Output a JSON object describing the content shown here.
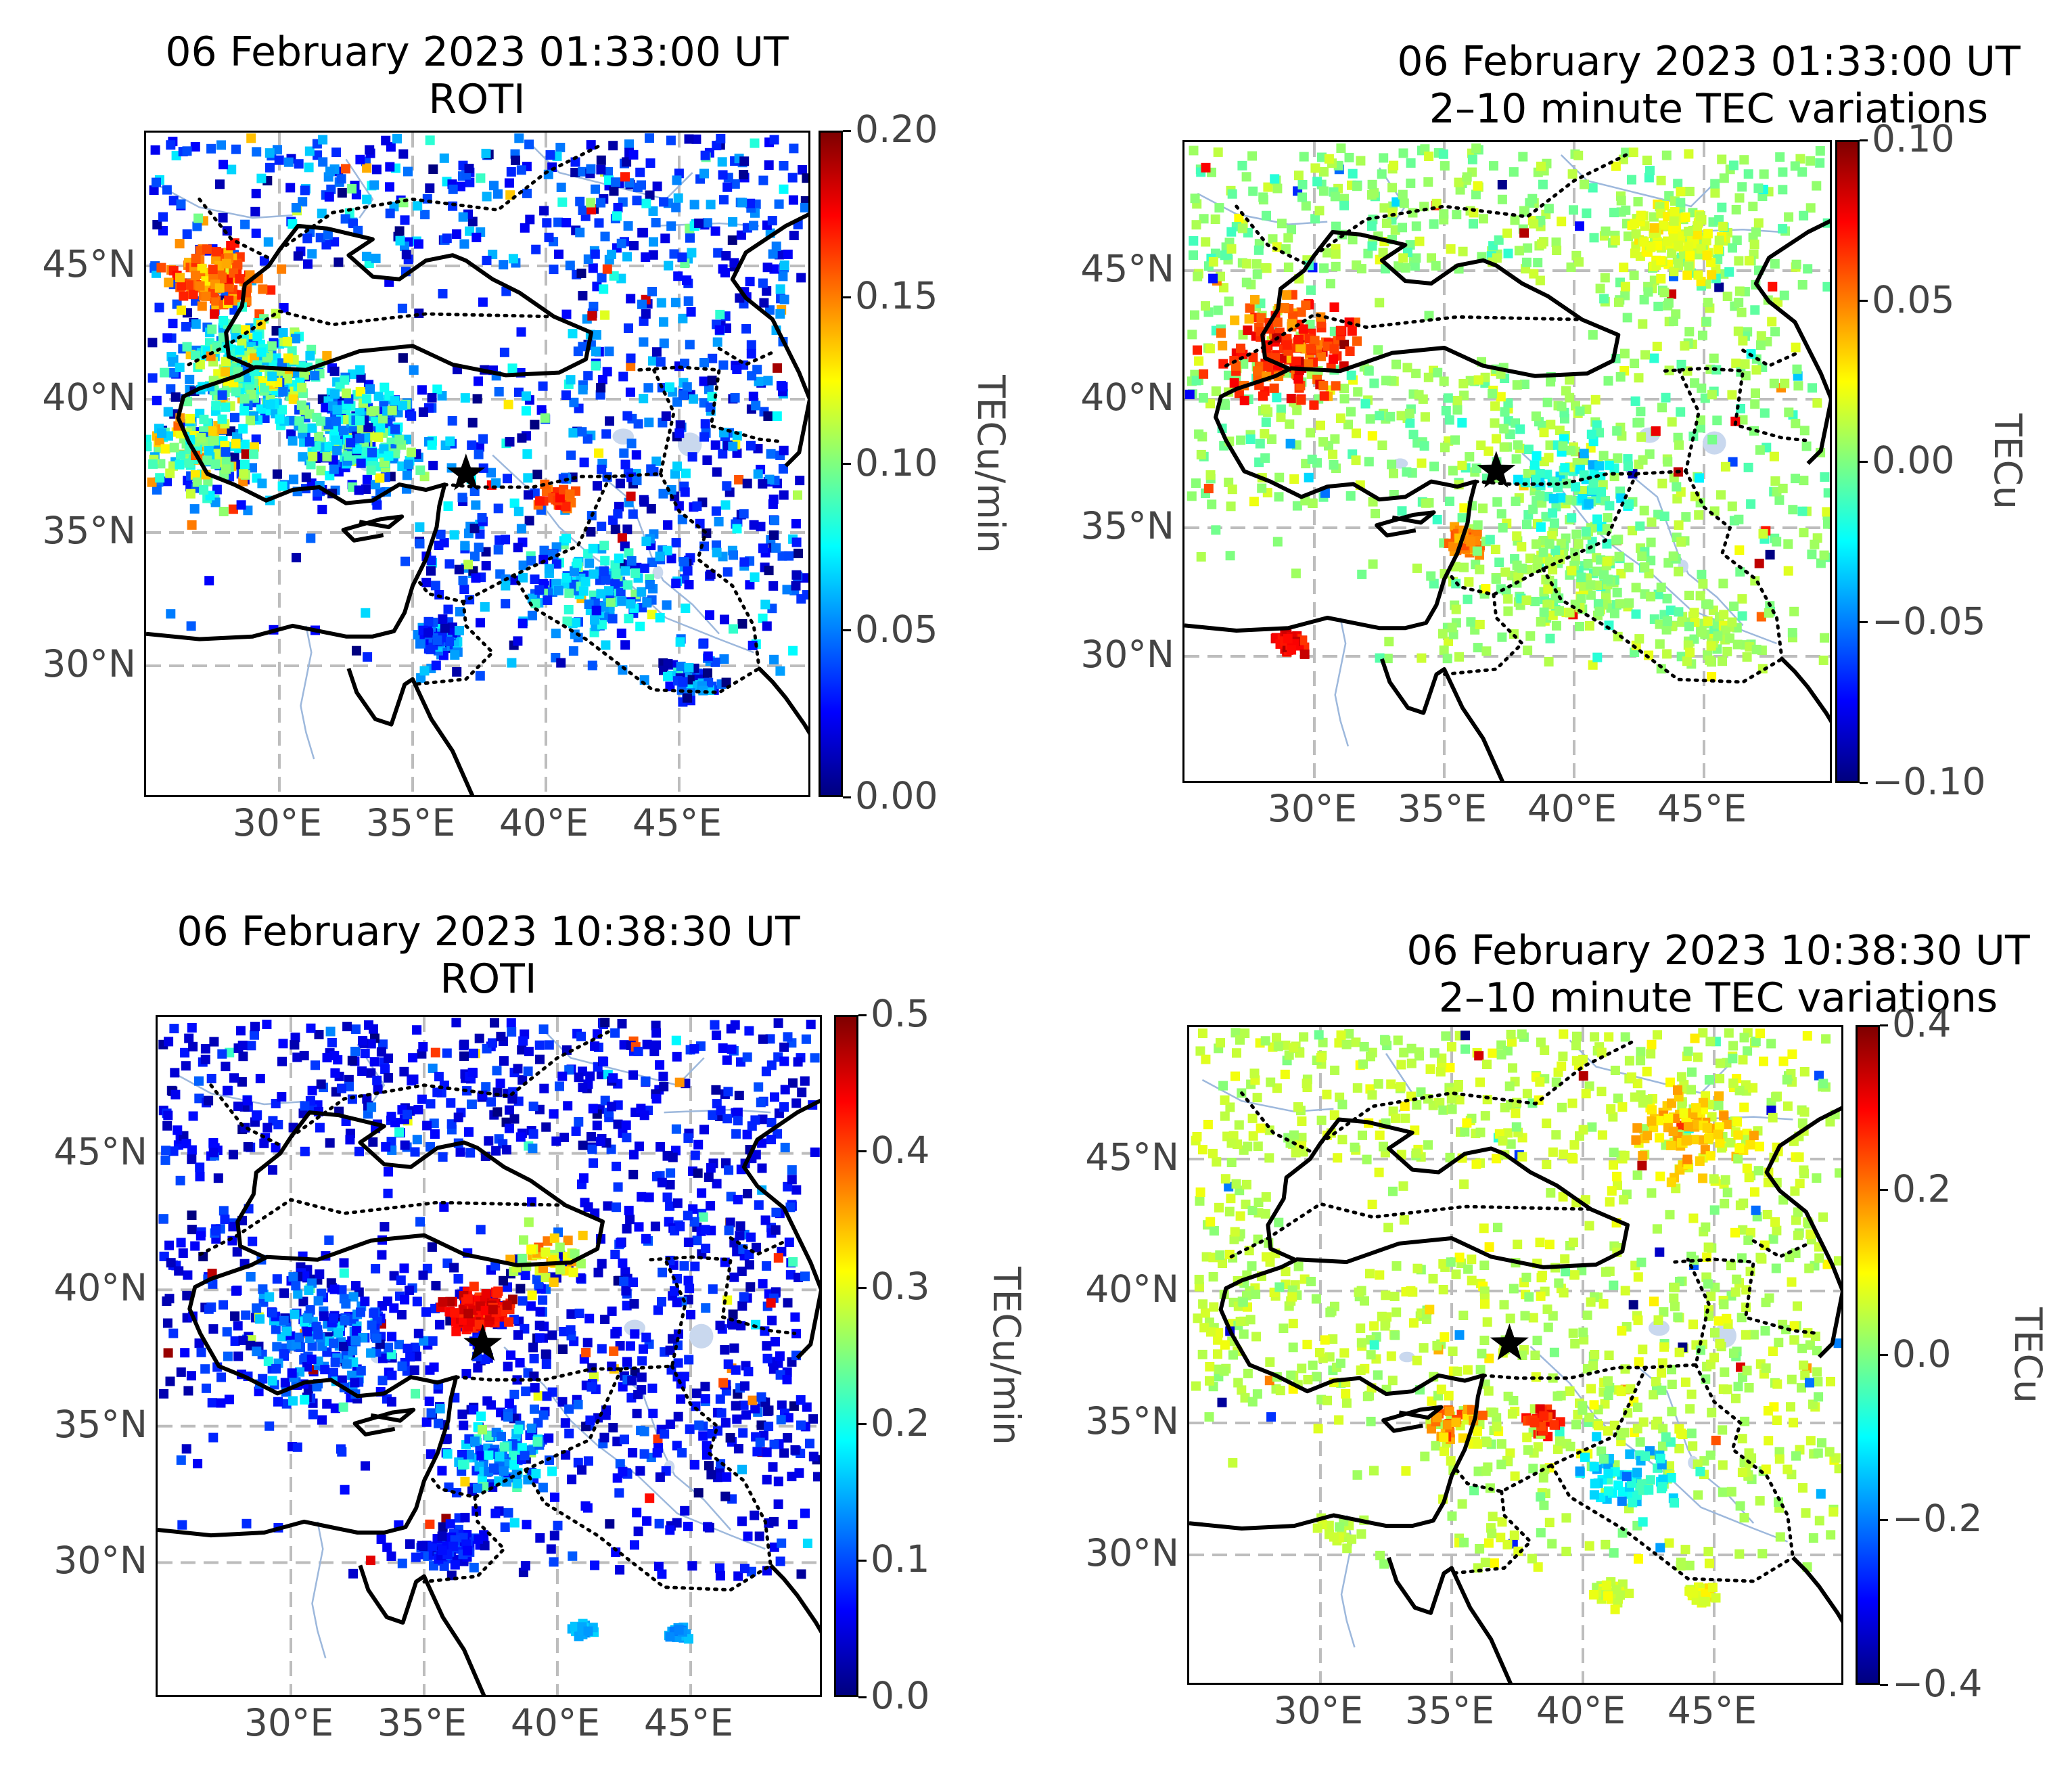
{
  "figure": {
    "colormap": [
      "#00007f",
      "#0000ff",
      "#007fff",
      "#00ffff",
      "#7fff7f",
      "#ffff00",
      "#ff7f00",
      "#ff0000",
      "#7f0000"
    ],
    "epicenter_marker": "black-star",
    "lon_ticks": [
      "30°E",
      "35°E",
      "40°E",
      "45°E"
    ],
    "lat_ticks": [
      "30°N",
      "35°N",
      "40°N",
      "45°N"
    ]
  },
  "chart_data": [
    {
      "type": "scatter",
      "panel": "top-left",
      "title_line1": "06 February 2023 01:33:00 UT",
      "title_line2": "ROTI",
      "xlabel": "",
      "ylabel": "",
      "x_range": [
        25,
        50
      ],
      "y_range": [
        25,
        50
      ],
      "x_ticks": [
        30,
        35,
        40,
        45
      ],
      "y_ticks": [
        30,
        35,
        40,
        45
      ],
      "x_tick_labels": [
        "30°E",
        "35°E",
        "40°E",
        "45°E"
      ],
      "y_tick_labels": [
        "30°N",
        "35°N",
        "40°N",
        "45°N"
      ],
      "epicenter": [
        37.0,
        37.2
      ],
      "colorbar": {
        "label": "TECu/min",
        "min": 0.0,
        "max": 0.2,
        "ticks": [
          0.0,
          0.05,
          0.1,
          0.15,
          0.2
        ],
        "tick_labels": [
          "0.00",
          "0.05",
          "0.10",
          "0.15",
          "0.20"
        ]
      }
    },
    {
      "type": "scatter",
      "panel": "top-right",
      "title_line1": "06 February 2023 01:33:00 UT",
      "title_line2": "2–10 minute TEC variations",
      "xlabel": "",
      "ylabel": "",
      "x_range": [
        25,
        50
      ],
      "y_range": [
        25,
        50
      ],
      "x_ticks": [
        30,
        35,
        40,
        45
      ],
      "y_ticks": [
        30,
        35,
        40,
        45
      ],
      "x_tick_labels": [
        "30°E",
        "35°E",
        "40°E",
        "45°E"
      ],
      "y_tick_labels": [
        "30°N",
        "35°N",
        "40°N",
        "45°N"
      ],
      "epicenter": [
        37.0,
        37.2
      ],
      "colorbar": {
        "label": "TECu",
        "min": -0.1,
        "max": 0.1,
        "ticks": [
          -0.1,
          -0.05,
          0.0,
          0.05,
          0.1
        ],
        "tick_labels": [
          "−0.10",
          "−0.05",
          "0.00",
          "0.05",
          "0.10"
        ]
      }
    },
    {
      "type": "scatter",
      "panel": "bottom-left",
      "title_line1": "06 February 2023 10:38:30 UT",
      "title_line2": "ROTI",
      "xlabel": "",
      "ylabel": "",
      "x_range": [
        25,
        50
      ],
      "y_range": [
        25,
        50
      ],
      "x_ticks": [
        30,
        35,
        40,
        45
      ],
      "y_ticks": [
        30,
        35,
        40,
        45
      ],
      "x_tick_labels": [
        "30°E",
        "35°E",
        "40°E",
        "45°E"
      ],
      "y_tick_labels": [
        "30°N",
        "35°N",
        "40°N",
        "45°N"
      ],
      "epicenter": [
        37.2,
        38.0
      ],
      "colorbar": {
        "label": "TECu/min",
        "min": 0.0,
        "max": 0.5,
        "ticks": [
          0.0,
          0.1,
          0.2,
          0.3,
          0.4,
          0.5
        ],
        "tick_labels": [
          "0.0",
          "0.1",
          "0.2",
          "0.3",
          "0.4",
          "0.5"
        ]
      }
    },
    {
      "type": "scatter",
      "panel": "bottom-right",
      "title_line1": "06 February 2023 10:38:30 UT",
      "title_line2": "2–10 minute TEC variations",
      "xlabel": "",
      "ylabel": "",
      "x_range": [
        25,
        50
      ],
      "y_range": [
        25,
        50
      ],
      "x_ticks": [
        30,
        35,
        40,
        45
      ],
      "y_ticks": [
        30,
        35,
        40,
        45
      ],
      "x_tick_labels": [
        "30°E",
        "35°E",
        "40°E",
        "45°E"
      ],
      "y_tick_labels": [
        "30°N",
        "35°N",
        "40°N",
        "45°N"
      ],
      "epicenter": [
        37.2,
        38.0
      ],
      "colorbar": {
        "label": "TECu",
        "min": -0.4,
        "max": 0.4,
        "ticks": [
          -0.4,
          -0.2,
          0.0,
          0.2,
          0.4
        ],
        "tick_labels": [
          "−0.4",
          "−0.2",
          "0.0",
          "0.2",
          "0.4"
        ]
      }
    }
  ]
}
